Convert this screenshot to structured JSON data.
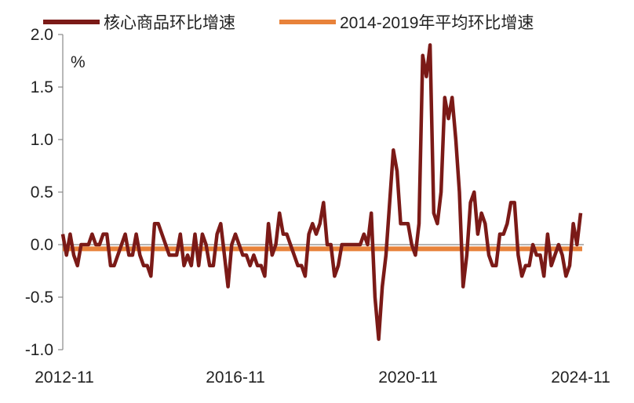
{
  "chart_data": {
    "type": "line",
    "unit": "%",
    "x_tick_labels": [
      "2012-11",
      "2016-11",
      "2020-11",
      "2024-11"
    ],
    "y_ticks": [
      2.0,
      1.5,
      1.0,
      0.5,
      0.0,
      -0.5,
      -1.0
    ],
    "y_tick_labels": [
      "2.0",
      "1.5",
      "1.0",
      "0.5",
      "0.0",
      "-0.5",
      "-1.0"
    ],
    "ylim": [
      -1.0,
      2.0
    ],
    "grid": false,
    "legend_position": "top",
    "x_start": "2012-11",
    "x_end": "2024-11",
    "series": [
      {
        "name": "核心商品环比增速",
        "color": "#7b1a17",
        "values": [
          0.1,
          -0.1,
          0.1,
          -0.1,
          -0.2,
          0.0,
          0.0,
          0.0,
          0.1,
          0.0,
          0.0,
          0.1,
          0.1,
          -0.2,
          -0.2,
          -0.1,
          0.0,
          0.1,
          -0.1,
          -0.1,
          0.1,
          -0.1,
          -0.2,
          -0.2,
          -0.3,
          0.2,
          0.2,
          0.1,
          0.0,
          -0.1,
          -0.1,
          -0.1,
          0.1,
          -0.2,
          -0.1,
          -0.2,
          0.1,
          -0.2,
          0.1,
          0.0,
          -0.2,
          -0.2,
          0.1,
          0.2,
          -0.1,
          -0.4,
          0.0,
          0.1,
          0.0,
          -0.1,
          -0.1,
          -0.2,
          -0.1,
          -0.2,
          -0.2,
          -0.3,
          0.2,
          -0.1,
          0.0,
          0.3,
          0.1,
          0.1,
          0.0,
          -0.1,
          -0.2,
          -0.2,
          -0.3,
          0.1,
          0.2,
          0.1,
          0.2,
          0.4,
          0.0,
          0.0,
          -0.3,
          -0.2,
          0.0,
          0.0,
          0.0,
          0.0,
          0.0,
          0.0,
          0.1,
          0.0,
          0.3,
          -0.5,
          -0.9,
          -0.4,
          -0.1,
          0.4,
          0.9,
          0.7,
          0.2,
          0.2,
          0.2,
          0.0,
          -0.1,
          0.2,
          1.8,
          1.6,
          1.9,
          0.3,
          0.2,
          0.5,
          1.4,
          1.2,
          1.4,
          1.0,
          0.5,
          -0.4,
          -0.1,
          0.4,
          0.5,
          0.1,
          0.3,
          0.2,
          -0.1,
          -0.2,
          -0.2,
          0.1,
          0.1,
          0.2,
          0.4,
          0.4,
          -0.1,
          -0.3,
          -0.2,
          -0.2,
          0.0,
          -0.1,
          -0.1,
          -0.3,
          0.1,
          -0.2,
          -0.1,
          0.0,
          -0.1,
          -0.3,
          -0.2,
          0.2,
          0.0,
          0.3
        ]
      },
      {
        "name": "2014-2019年平均环比增速",
        "color": "#e8823a",
        "values": [
          -0.04,
          -0.04
        ]
      }
    ]
  }
}
